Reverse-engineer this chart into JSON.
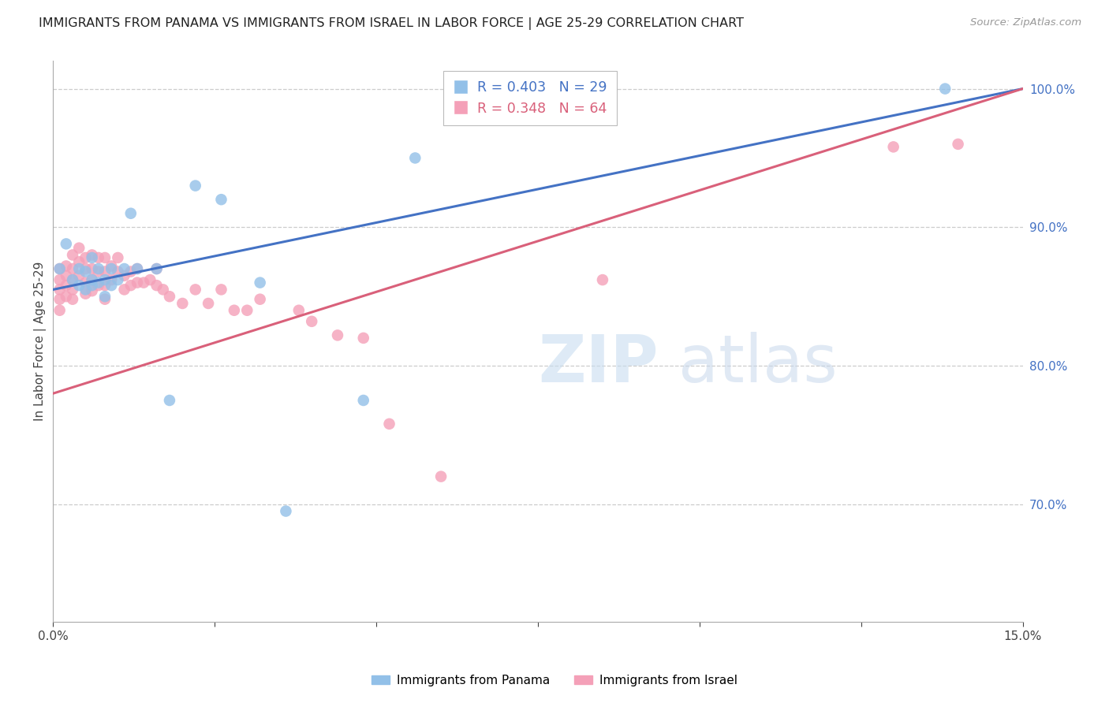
{
  "title": "IMMIGRANTS FROM PANAMA VS IMMIGRANTS FROM ISRAEL IN LABOR FORCE | AGE 25-29 CORRELATION CHART",
  "source": "Source: ZipAtlas.com",
  "ylabel": "In Labor Force | Age 25-29",
  "legend_label_blue": "Immigrants from Panama",
  "legend_label_pink": "Immigrants from Israel",
  "legend_blue_text": "R = 0.403   N = 29",
  "legend_pink_text": "R = 0.348   N = 64",
  "xlim": [
    0.0,
    0.15
  ],
  "ylim": [
    0.615,
    1.02
  ],
  "blue_color": "#92c0e8",
  "pink_color": "#f4a0b8",
  "blue_line_color": "#4472c4",
  "pink_line_color": "#d9607a",
  "grid_color": "#cccccc",
  "blue_scatter_x": [
    0.001,
    0.002,
    0.003,
    0.004,
    0.004,
    0.005,
    0.005,
    0.006,
    0.006,
    0.006,
    0.007,
    0.007,
    0.008,
    0.008,
    0.009,
    0.009,
    0.01,
    0.011,
    0.012,
    0.013,
    0.016,
    0.018,
    0.022,
    0.026,
    0.032,
    0.036,
    0.048,
    0.056,
    0.138
  ],
  "blue_scatter_y": [
    0.87,
    0.888,
    0.862,
    0.87,
    0.858,
    0.868,
    0.855,
    0.862,
    0.878,
    0.858,
    0.87,
    0.86,
    0.862,
    0.85,
    0.87,
    0.858,
    0.862,
    0.87,
    0.91,
    0.87,
    0.87,
    0.775,
    0.93,
    0.92,
    0.86,
    0.695,
    0.775,
    0.95,
    1.0
  ],
  "pink_scatter_x": [
    0.001,
    0.001,
    0.001,
    0.001,
    0.001,
    0.002,
    0.002,
    0.002,
    0.002,
    0.003,
    0.003,
    0.003,
    0.003,
    0.003,
    0.004,
    0.004,
    0.004,
    0.005,
    0.005,
    0.005,
    0.005,
    0.006,
    0.006,
    0.006,
    0.006,
    0.007,
    0.007,
    0.007,
    0.008,
    0.008,
    0.008,
    0.008,
    0.009,
    0.009,
    0.01,
    0.01,
    0.011,
    0.011,
    0.012,
    0.012,
    0.013,
    0.013,
    0.014,
    0.015,
    0.016,
    0.016,
    0.017,
    0.018,
    0.02,
    0.022,
    0.024,
    0.026,
    0.028,
    0.03,
    0.032,
    0.038,
    0.04,
    0.044,
    0.048,
    0.052,
    0.06,
    0.085,
    0.13,
    0.14
  ],
  "pink_scatter_y": [
    0.87,
    0.862,
    0.855,
    0.848,
    0.84,
    0.872,
    0.865,
    0.858,
    0.85,
    0.88,
    0.87,
    0.862,
    0.855,
    0.848,
    0.885,
    0.875,
    0.865,
    0.878,
    0.87,
    0.86,
    0.852,
    0.88,
    0.87,
    0.862,
    0.854,
    0.878,
    0.868,
    0.858,
    0.878,
    0.868,
    0.858,
    0.848,
    0.872,
    0.862,
    0.878,
    0.868,
    0.865,
    0.855,
    0.868,
    0.858,
    0.87,
    0.86,
    0.86,
    0.862,
    0.87,
    0.858,
    0.855,
    0.85,
    0.845,
    0.855,
    0.845,
    0.855,
    0.84,
    0.84,
    0.848,
    0.84,
    0.832,
    0.822,
    0.82,
    0.758,
    0.72,
    0.862,
    0.958,
    0.96
  ]
}
